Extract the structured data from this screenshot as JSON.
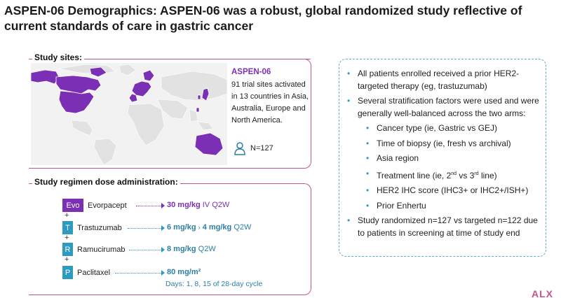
{
  "title": "ASPEN-06 Demographics: ASPEN-06 was a robust, global randomized study reflective of current standards of care in gastric cancer",
  "study_sites": {
    "label": "Study sites:",
    "heading": "ASPEN-06",
    "description": "91 trial sites activated in 13 countries in Asia, Australia, Europe and North America.",
    "n_label": "N=127",
    "highlight_color": "#7a2fb5"
  },
  "regimen": {
    "label": "Study regimen dose administration:",
    "drugs": [
      {
        "tag": "Evo",
        "name": "Evorpacept",
        "dose": "30 mg/kg",
        "schedule": "IV Q2W",
        "color": "#7a2fb5"
      },
      {
        "tag": "T",
        "name": "Trastuzumab",
        "dose": "6 mg/kg",
        "dose2": "4 mg/kg",
        "schedule": "Q2W",
        "color": "#2c9bbf"
      },
      {
        "tag": "R",
        "name": "Ramucirumab",
        "dose": "8 mg/kg",
        "schedule": "Q2W",
        "color": "#2c9bbf"
      },
      {
        "tag": "P",
        "name": "Paclitaxel",
        "dose": "80 mg/m²",
        "schedule": "",
        "color": "#2c9bbf"
      }
    ],
    "plus": "+",
    "days": "Days: 1, 8, 15 of 28-day cycle"
  },
  "info": {
    "b1": "All patients enrolled received a prior HER2-targeted therapy (eg, trastuzumab)",
    "b2": "Several stratification factors were used and were generally well-balanced across the two arms:",
    "subs": {
      "s1": "Cancer type (ie, Gastric vs GEJ)",
      "s2": "Time of biopsy (ie, fresh vs archival)",
      "s3": "Asia region",
      "s4a": "Treatment line (ie, 2",
      "s4sup1": "nd",
      "s4b": " vs 3",
      "s4sup2": "rd",
      "s4c": " line)",
      "s5": "HER2 IHC score (IHC3+ or IHC2+/ISH+)",
      "s6": "Prior Enhertu"
    },
    "b3": "Study randomized n=127 vs targeted n=122 due to patients in screening at time of study end"
  },
  "logo_text": "ALX"
}
